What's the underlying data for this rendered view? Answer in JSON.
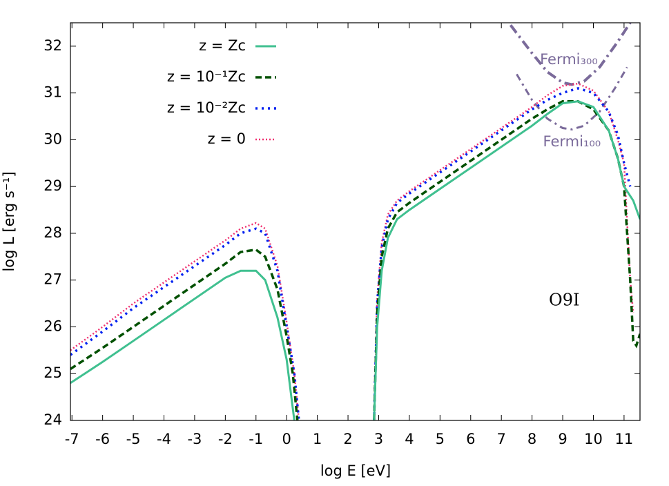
{
  "chart_data": {
    "type": "line",
    "x_label": "log E [eV]",
    "y_label": "log L [erg s⁻¹]",
    "xlim": [
      -7.05,
      11.52
    ],
    "ylim": [
      24,
      32.5
    ],
    "xticks": [
      -7,
      -6,
      -5,
      -4,
      -3,
      -2,
      -1,
      0,
      1,
      2,
      3,
      4,
      5,
      6,
      7,
      8,
      9,
      10,
      11
    ],
    "yticks": [
      24,
      25,
      26,
      27,
      28,
      29,
      30,
      31,
      32
    ],
    "legend": "top-left",
    "annotations": [
      {
        "text": "O9I",
        "x": 9.05,
        "y": 26.55
      },
      {
        "text": "Fermi₃₀₀",
        "x": 9.2,
        "y": 31.7
      },
      {
        "text": "Fermi₁₀₀",
        "x": 9.3,
        "y": 29.95
      }
    ],
    "series": [
      {
        "name": "z = Zc",
        "color": "#40c090",
        "style": "solid",
        "x": [
          -7.05,
          -6,
          -5,
          -4,
          -3,
          -2,
          -1.5,
          -1,
          -0.7,
          -0.3,
          0,
          0.25,
          null,
          2.85,
          2.95,
          3.1,
          3.3,
          3.6,
          4,
          5,
          6,
          7,
          8,
          8.5,
          9,
          9.5,
          10,
          10.5,
          10.8,
          11,
          11.3,
          11.52
        ],
        "values": [
          24.8,
          25.25,
          25.7,
          26.15,
          26.6,
          27.05,
          27.2,
          27.2,
          27.0,
          26.2,
          25.3,
          24.0,
          null,
          24,
          26,
          27.2,
          27.9,
          28.3,
          28.5,
          28.95,
          29.4,
          29.85,
          30.3,
          30.55,
          30.78,
          30.82,
          30.7,
          30.2,
          29.6,
          29.0,
          28.7,
          28.3
        ]
      },
      {
        "name": "z = 10⁻¹Zc",
        "color": "#005000",
        "style": "dashed",
        "x": [
          -7.05,
          -6,
          -5,
          -4,
          -3,
          -2,
          -1.5,
          -1,
          -0.7,
          -0.3,
          0,
          0.2,
          0.35,
          null,
          2.85,
          2.95,
          3.1,
          3.3,
          3.6,
          4,
          5,
          6,
          7,
          8,
          8.5,
          9,
          9.5,
          10,
          10.5,
          10.8,
          11,
          11.2,
          11.3,
          11.4,
          11.52
        ],
        "values": [
          25.1,
          25.55,
          26.0,
          26.45,
          26.9,
          27.35,
          27.6,
          27.65,
          27.5,
          26.8,
          25.8,
          25,
          24,
          null,
          24,
          26.3,
          27.5,
          28.1,
          28.45,
          28.65,
          29.1,
          29.55,
          30.0,
          30.45,
          30.65,
          30.82,
          30.82,
          30.65,
          30.2,
          29.6,
          29.0,
          27.0,
          25.7,
          25.6,
          25.85
        ]
      },
      {
        "name": "z = 10⁻²Zc",
        "color": "#0020f0",
        "style": "dotted",
        "x": [
          -7.05,
          -6,
          -5,
          -4,
          -3,
          -2,
          -1.5,
          -1,
          -0.7,
          -0.3,
          0,
          0.25,
          0.4,
          null,
          2.85,
          2.95,
          3.1,
          3.3,
          3.6,
          4,
          5,
          6,
          7,
          8,
          8.5,
          9,
          9.5,
          10,
          10.5,
          10.8,
          11,
          11.2
        ],
        "values": [
          25.4,
          25.9,
          26.4,
          26.85,
          27.3,
          27.75,
          28.0,
          28.1,
          28.0,
          27.2,
          26.0,
          25,
          24,
          null,
          24,
          26.5,
          27.7,
          28.3,
          28.65,
          28.85,
          29.3,
          29.75,
          30.2,
          30.65,
          30.85,
          31.0,
          31.1,
          31.0,
          30.6,
          30.1,
          29.5,
          29.0
        ]
      },
      {
        "name": "z = 0",
        "color": "#f03070",
        "style": "fine",
        "x": [
          -7.05,
          -6,
          -5,
          -4,
          -3,
          -2,
          -1.5,
          -1,
          -0.7,
          -0.3,
          0,
          0.25,
          0.4,
          null,
          2.85,
          2.95,
          3.1,
          3.3,
          3.6,
          4,
          5,
          6,
          7,
          8,
          8.5,
          9,
          9.5,
          10,
          10.5,
          10.8,
          11,
          11.2,
          11.3
        ],
        "values": [
          25.5,
          26.0,
          26.5,
          26.95,
          27.4,
          27.85,
          28.1,
          28.22,
          28.1,
          27.3,
          26.1,
          25,
          24,
          null,
          24,
          26.6,
          27.8,
          28.4,
          28.7,
          28.9,
          29.35,
          29.8,
          30.25,
          30.7,
          30.95,
          31.15,
          31.2,
          31.05,
          30.6,
          30.0,
          29.5,
          27,
          26.3
        ]
      }
    ],
    "limits": [
      {
        "color": "#7a6a9a",
        "style": "dashdot-thick",
        "x": [
          7.3,
          8,
          8.5,
          9,
          9.3,
          9.7,
          10.2,
          10.8,
          11.2
        ],
        "values": [
          32.45,
          31.85,
          31.45,
          31.22,
          31.18,
          31.25,
          31.55,
          32.1,
          32.5
        ]
      },
      {
        "color": "#7a6a9a",
        "style": "dashdot",
        "x": [
          7.5,
          8,
          8.5,
          9,
          9.3,
          9.7,
          10.2,
          10.7,
          11.1
        ],
        "values": [
          31.4,
          30.85,
          30.45,
          30.25,
          30.22,
          30.3,
          30.6,
          31.1,
          31.55
        ]
      }
    ]
  }
}
